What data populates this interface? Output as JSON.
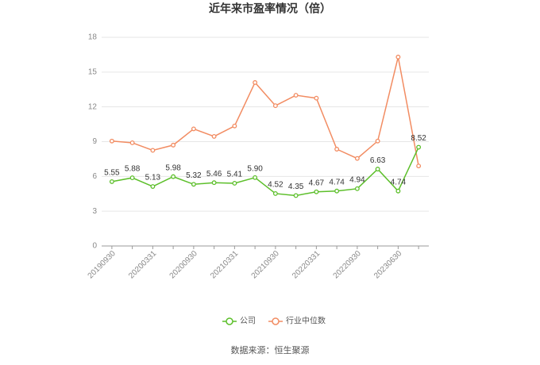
{
  "chart_data": {
    "type": "line",
    "title": "近年来市盈率情况（倍）",
    "source": "数据来源：恒生聚源",
    "categories": [
      "20190930",
      null,
      "20200331",
      null,
      "20200930",
      null,
      "20210331",
      null,
      "20210930",
      null,
      "20220331",
      null,
      "20220930",
      null,
      "20230630",
      null
    ],
    "series": [
      {
        "name": "公司",
        "color": "#5cbf2a",
        "values": [
          5.55,
          5.88,
          5.13,
          5.98,
          5.32,
          5.46,
          5.41,
          5.9,
          4.52,
          4.35,
          4.67,
          4.74,
          4.94,
          6.63,
          4.74,
          8.52
        ],
        "value_labels": [
          "5.55",
          "5.88",
          "5.13",
          "5.98",
          "5.32",
          "5.46",
          "5.41",
          "5.90",
          "4.52",
          "4.35",
          "4.67",
          "4.74",
          "4.94",
          "6.63",
          "4.74",
          "8.52"
        ]
      },
      {
        "name": "行业中位数",
        "color": "#f28c62",
        "values": [
          9.05,
          8.9,
          8.25,
          8.7,
          10.1,
          9.45,
          10.35,
          14.1,
          12.1,
          13.0,
          12.75,
          8.35,
          7.55,
          9.05,
          16.3,
          6.9
        ]
      }
    ],
    "ylim": [
      0,
      18
    ],
    "yticks": [
      0,
      3,
      6,
      9,
      12,
      15,
      18
    ],
    "grid": true
  }
}
